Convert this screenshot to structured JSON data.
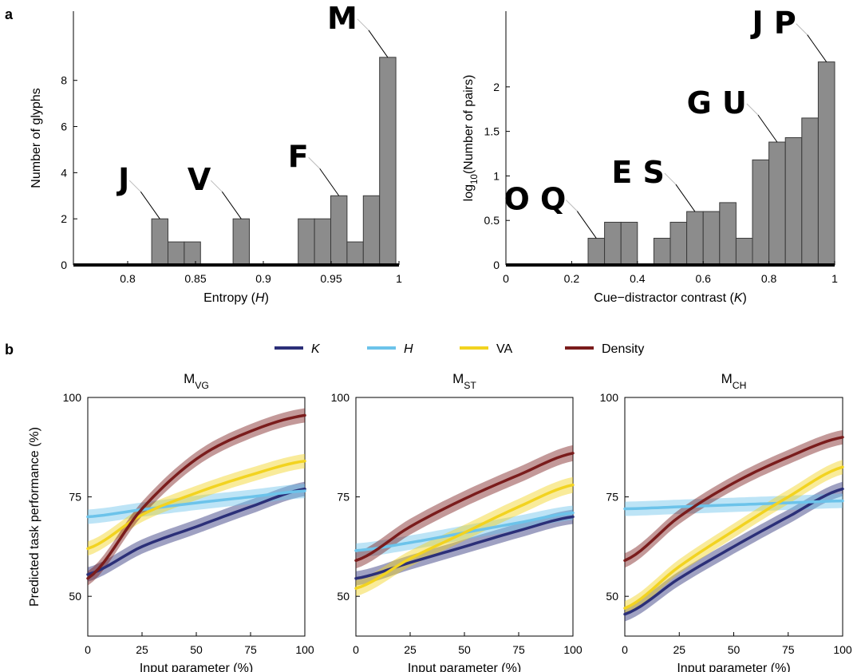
{
  "panel_labels": {
    "a": "a",
    "b": "b"
  },
  "colors": {
    "bar_fill": "#8c8c8c",
    "bar_edge": "#3a3a3a",
    "K": "#2b2f78",
    "H": "#6cc3ea",
    "VA": "#f2d320",
    "Density": "#7a1c1c"
  },
  "chart_data": [
    {
      "id": "entropy_hist",
      "type": "bar",
      "xlabel_prefix": "Entropy (",
      "xlabel_var": "H",
      "xlabel_suffix": ")",
      "ylabel": "Number of glyphs",
      "xlim": [
        0.76,
        1.0
      ],
      "ylim": [
        0,
        11
      ],
      "xticks": [
        "0.8",
        "0.85",
        "0.9",
        "0.95",
        "1"
      ],
      "xtick_values": [
        0.8,
        0.85,
        0.9,
        0.95,
        1.0
      ],
      "yticks": [
        "0",
        "2",
        "4",
        "6",
        "8"
      ],
      "ytick_values": [
        0,
        2,
        4,
        6,
        8
      ],
      "bin_width": 0.012,
      "bins": [
        {
          "x": 0.8237,
          "value": 2
        },
        {
          "x": 0.8357,
          "value": 1
        },
        {
          "x": 0.8477,
          "value": 1
        },
        {
          "x": 0.8837,
          "value": 2
        },
        {
          "x": 0.9317,
          "value": 2
        },
        {
          "x": 0.9437,
          "value": 2
        },
        {
          "x": 0.9557,
          "value": 3
        },
        {
          "x": 0.9677,
          "value": 1
        },
        {
          "x": 0.9797,
          "value": 3
        },
        {
          "x": 0.9917,
          "value": 9
        }
      ],
      "annotations": [
        {
          "text": "J",
          "bin": 0
        },
        {
          "text": "V",
          "bin": 3
        },
        {
          "text": "F",
          "bin": 6
        },
        {
          "text": "M",
          "bin": 9
        }
      ]
    },
    {
      "id": "contrast_hist",
      "type": "bar",
      "xlabel_prefix": "Cue−distractor contrast (",
      "xlabel_var": "K",
      "xlabel_suffix": ")",
      "ylabel_prefix": "log",
      "ylabel_sub": "10",
      "ylabel_suffix": "(Number of pairs)",
      "xlim": [
        0,
        1.0
      ],
      "ylim": [
        0,
        2.85
      ],
      "xticks": [
        "0",
        "0.2",
        "0.4",
        "0.6",
        "0.8",
        "1"
      ],
      "xtick_values": [
        0,
        0.2,
        0.4,
        0.6,
        0.8,
        1.0
      ],
      "yticks": [
        "0",
        "0.5",
        "1",
        "1.5",
        "2"
      ],
      "ytick_values": [
        0,
        0.5,
        1,
        1.5,
        2
      ],
      "bin_width": 0.05,
      "bins": [
        {
          "x": 0.275,
          "value": 0.3
        },
        {
          "x": 0.325,
          "value": 0.48
        },
        {
          "x": 0.375,
          "value": 0.48
        },
        {
          "x": 0.475,
          "value": 0.3
        },
        {
          "x": 0.525,
          "value": 0.48
        },
        {
          "x": 0.575,
          "value": 0.6
        },
        {
          "x": 0.625,
          "value": 0.6
        },
        {
          "x": 0.675,
          "value": 0.7
        },
        {
          "x": 0.725,
          "value": 0.3
        },
        {
          "x": 0.775,
          "value": 1.18
        },
        {
          "x": 0.825,
          "value": 1.38
        },
        {
          "x": 0.875,
          "value": 1.43
        },
        {
          "x": 0.925,
          "value": 1.65
        },
        {
          "x": 0.975,
          "value": 2.28
        }
      ],
      "annotations": [
        {
          "text": "O Q",
          "bin": 0
        },
        {
          "text": "E S",
          "bin": 5
        },
        {
          "text": "G U",
          "bin": 10
        },
        {
          "text": "J P",
          "bin": 13
        }
      ]
    },
    {
      "id": "mvg",
      "type": "line",
      "title_main": "M",
      "title_sub": "VG",
      "xlabel": "Input parameter (%)",
      "ylabel": "Predicted task performance (%)",
      "xlim": [
        0,
        100
      ],
      "ylim": [
        40,
        100
      ],
      "xticks": [
        "0",
        "25",
        "50",
        "75",
        "100"
      ],
      "yticks": [
        "50",
        "75",
        "100"
      ],
      "series": [
        {
          "name": "K",
          "key": "K",
          "x": [
            0,
            25,
            50,
            75,
            100
          ],
          "y": [
            55.5,
            62.5,
            67.5,
            72.5,
            77
          ],
          "band": 1.8
        },
        {
          "name": "H",
          "key": "H",
          "x": [
            0,
            25,
            50,
            75,
            100
          ],
          "y": [
            70,
            71.8,
            73.5,
            75,
            76.5
          ],
          "band": 1.8
        },
        {
          "name": "VA",
          "key": "VA",
          "x": [
            0,
            25,
            50,
            75,
            100
          ],
          "y": [
            62,
            70.5,
            76,
            80.5,
            84
          ],
          "band": 1.8
        },
        {
          "name": "Density",
          "key": "Density",
          "x": [
            0,
            25,
            50,
            75,
            100
          ],
          "y": [
            54.5,
            72,
            84.5,
            91.5,
            95.5
          ],
          "band": 1.8
        }
      ]
    },
    {
      "id": "mst",
      "type": "line",
      "title_main": "M",
      "title_sub": "ST",
      "xlabel": "Input parameter (%)",
      "xlim": [
        0,
        100
      ],
      "ylim": [
        40,
        100
      ],
      "xticks": [
        "0",
        "25",
        "50",
        "75",
        "100"
      ],
      "yticks": [
        "50",
        "75",
        "100"
      ],
      "series": [
        {
          "name": "K",
          "key": "K",
          "x": [
            0,
            25,
            50,
            75,
            100
          ],
          "y": [
            54.5,
            58.5,
            62.5,
            66.5,
            70
          ],
          "band": 1.8
        },
        {
          "name": "H",
          "key": "H",
          "x": [
            0,
            25,
            50,
            75,
            100
          ],
          "y": [
            61.5,
            63.5,
            66,
            68.5,
            71
          ],
          "band": 1.8
        },
        {
          "name": "VA",
          "key": "VA",
          "x": [
            0,
            25,
            50,
            75,
            100
          ],
          "y": [
            52,
            59.5,
            66,
            72.5,
            78
          ],
          "band": 2.0
        },
        {
          "name": "Density",
          "key": "Density",
          "x": [
            0,
            25,
            50,
            75,
            100
          ],
          "y": [
            59,
            67.5,
            74.5,
            80.5,
            86
          ],
          "band": 2.0
        }
      ]
    },
    {
      "id": "mch",
      "type": "line",
      "title_main": "M",
      "title_sub": "CH",
      "xlabel": "Input parameter (%)",
      "xlim": [
        0,
        100
      ],
      "ylim": [
        40,
        100
      ],
      "xticks": [
        "0",
        "25",
        "50",
        "75",
        "100"
      ],
      "yticks": [
        "50",
        "75",
        "100"
      ],
      "series": [
        {
          "name": "K",
          "key": "K",
          "x": [
            0,
            25,
            50,
            75,
            100
          ],
          "y": [
            45.5,
            54.5,
            62.5,
            70,
            77
          ],
          "band": 1.8
        },
        {
          "name": "H",
          "key": "H",
          "x": [
            0,
            25,
            50,
            75,
            100
          ],
          "y": [
            72,
            72.5,
            73,
            73.5,
            74
          ],
          "band": 1.8
        },
        {
          "name": "VA",
          "key": "VA",
          "x": [
            0,
            25,
            50,
            75,
            100
          ],
          "y": [
            47,
            57.5,
            66.5,
            75,
            82.5
          ],
          "band": 1.8
        },
        {
          "name": "Density",
          "key": "Density",
          "x": [
            0,
            25,
            50,
            75,
            100
          ],
          "y": [
            59,
            70,
            78.5,
            85,
            90
          ],
          "band": 1.8
        }
      ]
    }
  ],
  "legend": {
    "items": [
      {
        "key": "K",
        "label": "K",
        "italic": true
      },
      {
        "key": "H",
        "label": "H",
        "italic": true
      },
      {
        "key": "VA",
        "label": "VA",
        "italic": false
      },
      {
        "key": "Density",
        "label": "Density",
        "italic": false
      }
    ]
  }
}
